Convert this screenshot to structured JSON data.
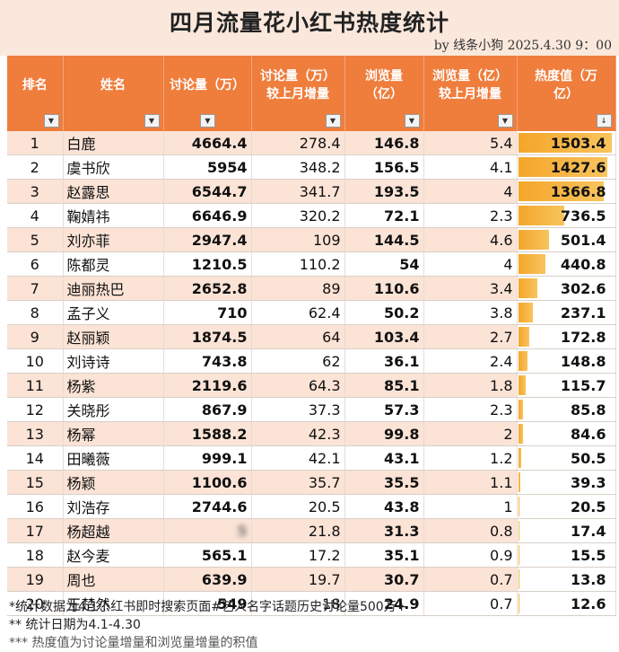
{
  "title": "四月流量花小红书热度统计",
  "byline": "by 线条小狗 2025.4.30 9：00",
  "colors": {
    "header_bg": "#ef7d3c",
    "band_bg": "#fbe3d6",
    "heat_bar": "#f4a62a"
  },
  "headers": {
    "rank": "排名",
    "name": "姓名",
    "discussion": "讨论量（万）",
    "discussion_inc_1": "讨论量（万）",
    "discussion_inc_2": "较上月增量",
    "views_1": "浏览量",
    "views_2": "（亿）",
    "views_inc_1": "浏览量（亿）",
    "views_inc_2": "较上月增量",
    "heat_1": "热度值（万",
    "heat_2": "亿）"
  },
  "filter_icon": "dropdown-arrow",
  "sort_icon": "sort-descending",
  "rows": [
    {
      "rank": "1",
      "name": "白鹿",
      "discussion": "4664.4",
      "discussion_inc": "278.4",
      "views": "146.8",
      "views_inc": "5.4",
      "heat": "1503.4",
      "heat_value": 1503.4
    },
    {
      "rank": "2",
      "name": "虞书欣",
      "discussion": "5954",
      "discussion_inc": "348.2",
      "views": "156.5",
      "views_inc": "4.1",
      "heat": "1427.6",
      "heat_value": 1427.6
    },
    {
      "rank": "3",
      "name": "赵露思",
      "discussion": "6544.7",
      "discussion_inc": "341.7",
      "views": "193.5",
      "views_inc": "4",
      "heat": "1366.8",
      "heat_value": 1366.8
    },
    {
      "rank": "4",
      "name": "鞠婧祎",
      "discussion": "6646.9",
      "discussion_inc": "320.2",
      "views": "72.1",
      "views_inc": "2.3",
      "heat": "736.5",
      "heat_value": 736.5
    },
    {
      "rank": "5",
      "name": "刘亦菲",
      "discussion": "2947.4",
      "discussion_inc": "109",
      "views": "144.5",
      "views_inc": "4.6",
      "heat": "501.4",
      "heat_value": 501.4
    },
    {
      "rank": "6",
      "name": "陈都灵",
      "discussion": "1210.5",
      "discussion_inc": "110.2",
      "views": "54",
      "views_inc": "4",
      "heat": "440.8",
      "heat_value": 440.8
    },
    {
      "rank": "7",
      "name": "迪丽热巴",
      "discussion": "2652.8",
      "discussion_inc": "89",
      "views": "110.6",
      "views_inc": "3.4",
      "heat": "302.6",
      "heat_value": 302.6
    },
    {
      "rank": "8",
      "name": "孟子义",
      "discussion": "710",
      "discussion_inc": "62.4",
      "views": "50.2",
      "views_inc": "3.8",
      "heat": "237.1",
      "heat_value": 237.1
    },
    {
      "rank": "9",
      "name": "赵丽颖",
      "discussion": "1874.5",
      "discussion_inc": "64",
      "views": "103.4",
      "views_inc": "2.7",
      "heat": "172.8",
      "heat_value": 172.8
    },
    {
      "rank": "10",
      "name": "刘诗诗",
      "discussion": "743.8",
      "discussion_inc": "62",
      "views": "36.1",
      "views_inc": "2.4",
      "heat": "148.8",
      "heat_value": 148.8
    },
    {
      "rank": "11",
      "name": "杨紫",
      "discussion": "2119.6",
      "discussion_inc": "64.3",
      "views": "85.1",
      "views_inc": "1.8",
      "heat": "115.7",
      "heat_value": 115.7
    },
    {
      "rank": "12",
      "name": "关晓彤",
      "discussion": "867.9",
      "discussion_inc": "37.3",
      "views": "57.3",
      "views_inc": "2.3",
      "heat": "85.8",
      "heat_value": 85.8
    },
    {
      "rank": "13",
      "name": "杨幂",
      "discussion": "1588.2",
      "discussion_inc": "42.3",
      "views": "99.8",
      "views_inc": "2",
      "heat": "84.6",
      "heat_value": 84.6
    },
    {
      "rank": "14",
      "name": "田曦薇",
      "discussion": "999.1",
      "discussion_inc": "42.1",
      "views": "43.1",
      "views_inc": "1.2",
      "heat": "50.5",
      "heat_value": 50.5
    },
    {
      "rank": "15",
      "name": "杨颖",
      "discussion": "1100.6",
      "discussion_inc": "35.7",
      "views": "35.5",
      "views_inc": "1.1",
      "heat": "39.3",
      "heat_value": 39.3
    },
    {
      "rank": "16",
      "name": "刘浩存",
      "discussion": "2744.6",
      "discussion_inc": "20.5",
      "views": "43.8",
      "views_inc": "1",
      "heat": "20.5",
      "heat_value": 20.5
    },
    {
      "rank": "17",
      "name": "杨超越",
      "discussion": "5",
      "discussion_inc": "21.8",
      "views": "31.3",
      "views_inc": "0.8",
      "heat": "17.4",
      "heat_value": 17.4,
      "discussion_blurred": true
    },
    {
      "rank": "18",
      "name": "赵今麦",
      "discussion": "565.1",
      "discussion_inc": "17.2",
      "views": "35.1",
      "views_inc": "0.9",
      "heat": "15.5",
      "heat_value": 15.5
    },
    {
      "rank": "19",
      "name": "周也",
      "discussion": "639.9",
      "discussion_inc": "19.7",
      "views": "30.7",
      "views_inc": "0.7",
      "heat": "13.8",
      "heat_value": 13.8
    },
    {
      "rank": "20",
      "name": "王楚然",
      "discussion": "549",
      "discussion_inc": "18",
      "views": "24.9",
      "views_inc": "0.7",
      "heat": "12.6",
      "heat_value": 12.6
    }
  ],
  "notes": [
    "*统计数据为4.1小红书即时搜索页面#艺人名字话题历史讨论量500万+",
    "** 统计日期为4.1-4.30",
    "*** 热度值为讨论量增量和浏览量增量的积值"
  ]
}
